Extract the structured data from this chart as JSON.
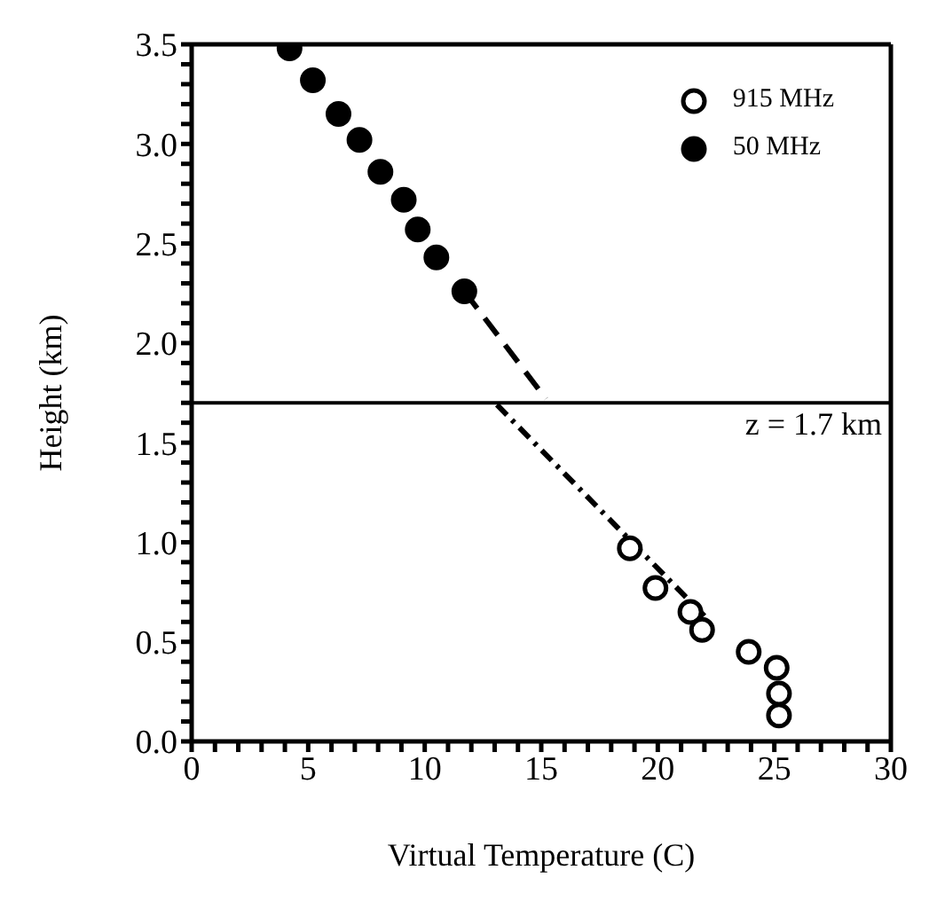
{
  "chart_data": {
    "type": "scatter",
    "xlabel": "Virtual Temperature  (C)",
    "ylabel": "Height  (km)",
    "xlim": [
      0,
      30
    ],
    "ylim": [
      0,
      3.5
    ],
    "xticks": [
      0,
      {
        "value": 1,
        "label": null
      },
      {
        "value": 2,
        "label": null
      },
      {
        "value": 3,
        "label": null
      },
      {
        "value": 4,
        "label": null
      },
      5,
      {
        "value": 6,
        "label": null
      },
      {
        "value": 7,
        "label": null
      },
      {
        "value": 8,
        "label": null
      },
      {
        "value": 9,
        "label": null
      },
      10,
      {
        "value": 11,
        "label": null
      },
      {
        "value": 12,
        "label": null
      },
      {
        "value": 13,
        "label": null
      },
      {
        "value": 14,
        "label": null
      },
      15,
      {
        "value": 16,
        "label": null
      },
      {
        "value": 17,
        "label": null
      },
      {
        "value": 18,
        "label": null
      },
      {
        "value": 19,
        "label": null
      },
      20,
      {
        "value": 21,
        "label": null
      },
      {
        "value": 22,
        "label": null
      },
      {
        "value": 23,
        "label": null
      },
      {
        "value": 24,
        "label": null
      },
      25,
      {
        "value": 26,
        "label": null
      },
      {
        "value": 27,
        "label": null
      },
      {
        "value": 28,
        "label": null
      },
      {
        "value": 29,
        "label": null
      },
      30
    ],
    "yticks": [
      {
        "value": 0,
        "label": "0.0"
      },
      {
        "value": 0.1,
        "label": null
      },
      {
        "value": 0.2,
        "label": null
      },
      {
        "value": 0.3,
        "label": null
      },
      {
        "value": 0.4,
        "label": null
      },
      0.5,
      {
        "value": 0.6,
        "label": null
      },
      {
        "value": 0.7,
        "label": null
      },
      {
        "value": 0.8,
        "label": null
      },
      {
        "value": 0.9,
        "label": null
      },
      {
        "value": 1,
        "label": "1.0"
      },
      {
        "value": 1.1,
        "label": null
      },
      {
        "value": 1.2,
        "label": null
      },
      {
        "value": 1.3,
        "label": null
      },
      {
        "value": 1.4,
        "label": null
      },
      1.5,
      {
        "value": 1.6,
        "label": null
      },
      {
        "value": 1.7,
        "label": null
      },
      {
        "value": 1.8,
        "label": null
      },
      {
        "value": 1.9,
        "label": null
      },
      {
        "value": 2,
        "label": "2.0"
      },
      {
        "value": 2.1,
        "label": null
      },
      {
        "value": 2.2,
        "label": null
      },
      {
        "value": 2.3,
        "label": null
      },
      {
        "value": 2.4,
        "label": null
      },
      2.5,
      {
        "value": 2.6,
        "label": null
      },
      {
        "value": 2.7,
        "label": null
      },
      {
        "value": 2.8,
        "label": null
      },
      {
        "value": 2.9,
        "label": null
      },
      {
        "value": 3,
        "label": "3.0"
      },
      {
        "value": 3.1,
        "label": null
      },
      {
        "value": 3.2,
        "label": null
      },
      {
        "value": 3.3,
        "label": null
      },
      {
        "value": 3.4,
        "label": null
      },
      3.5
    ],
    "legend": "top right",
    "ref_lines": [
      {
        "axis": "y",
        "value": 1.7,
        "label": "z = 1.7 km",
        "color": "#000000"
      }
    ],
    "series": [
      {
        "name": "915 MHz",
        "color": "#000000",
        "marker": "circle",
        "x": [
          18.8,
          19.9,
          21.4,
          21.9,
          23.9,
          25.1,
          25.2,
          25.2
        ],
        "values": [
          0.97,
          0.77,
          0.65,
          0.56,
          0.45,
          0.37,
          0.24,
          0.13
        ]
      },
      {
        "name": "50 MHz",
        "color": "#000000",
        "marker": "circle",
        "x": [
          4.2,
          5.2,
          6.3,
          7.2,
          8.1,
          9.1,
          9.7,
          10.5,
          11.7
        ],
        "values": [
          3.48,
          3.32,
          3.15,
          3.02,
          2.86,
          2.72,
          2.57,
          2.43,
          2.26
        ]
      },
      {
        "type": "line",
        "color": "#000000",
        "line_style": "dashed",
        "x": [
          11.7,
          15.2
        ],
        "values": [
          2.26,
          1.72
        ]
      },
      {
        "type": "line",
        "color": "#000000",
        "line_style": "dotted",
        "x": [
          13.1,
          22.0
        ],
        "values": [
          1.69,
          0.63
        ]
      }
    ]
  }
}
